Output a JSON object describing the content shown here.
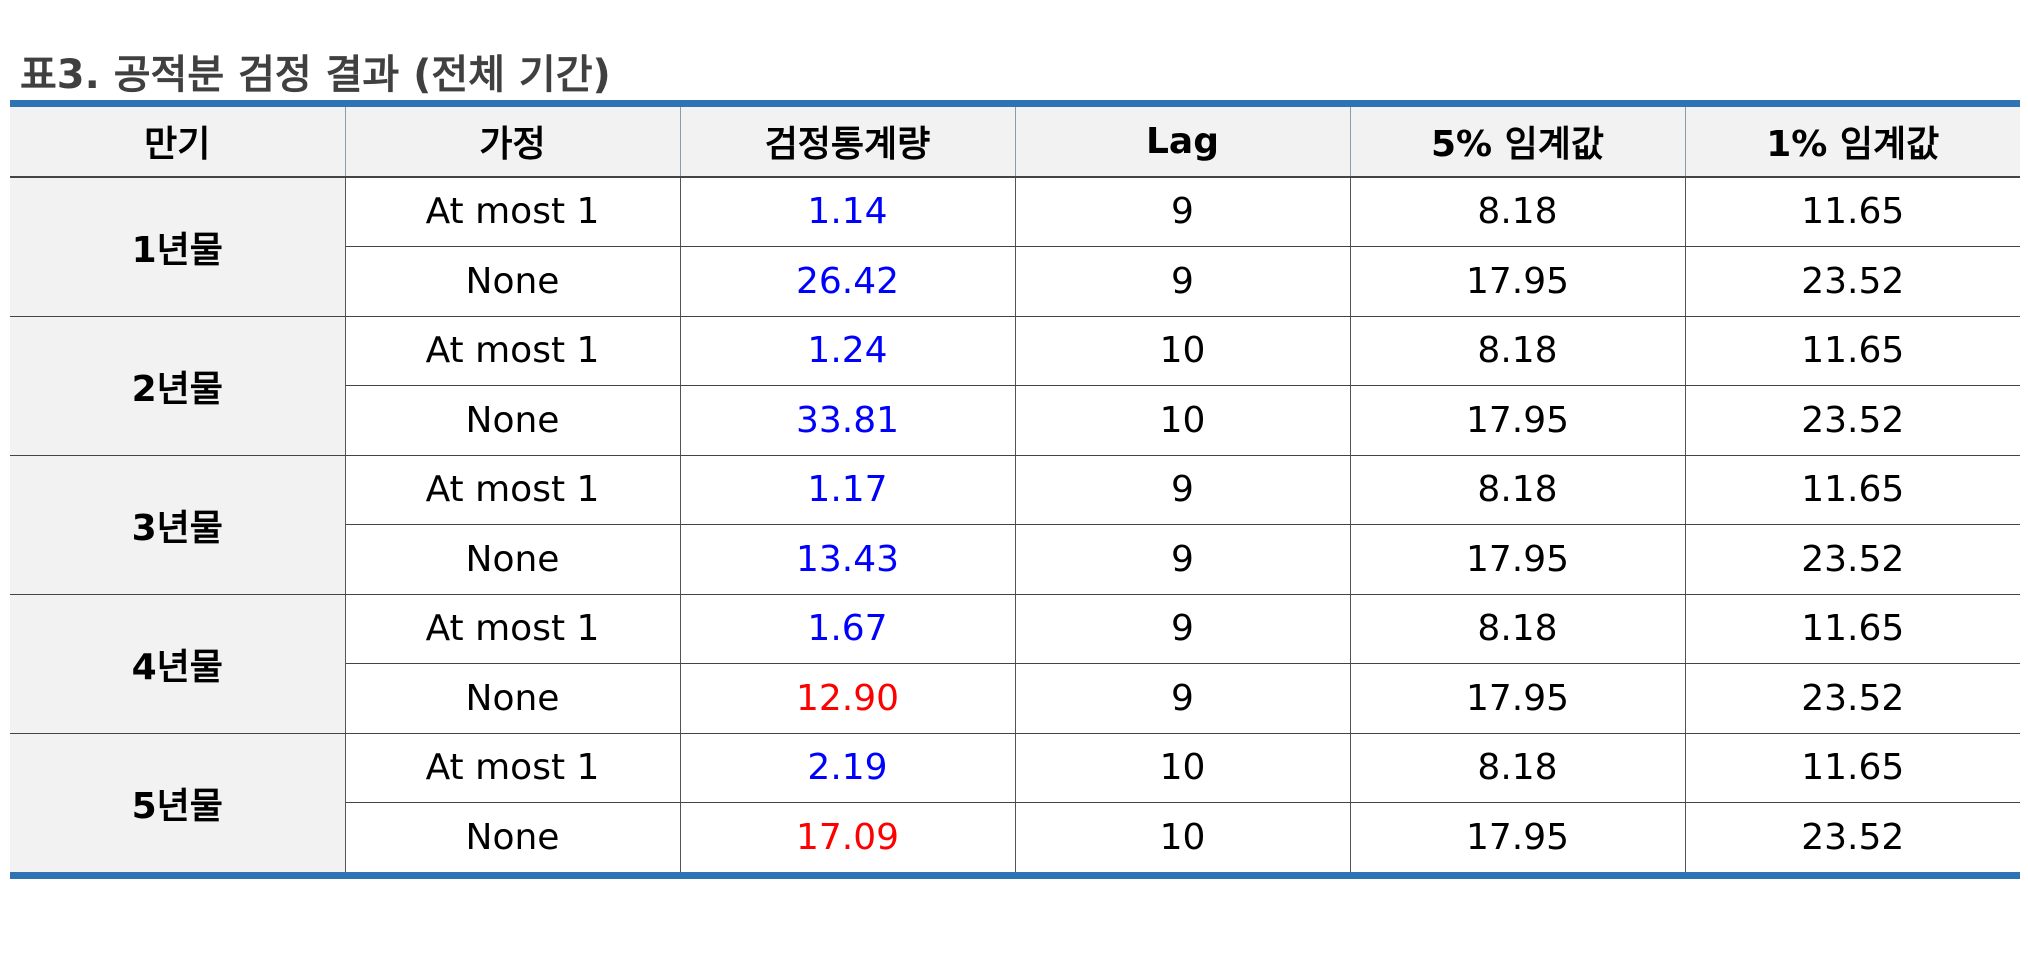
{
  "title": "표3. 공적분 검정 결과 (전체 기간)",
  "colors": {
    "accent": "#2e74b5",
    "header_bg": "#f2f2f2",
    "stat_blue": "#0000ff",
    "stat_red": "#ff0000"
  },
  "headers": [
    "만기",
    "가정",
    "검정통계량",
    "Lag",
    "5% 임계값",
    "1% 임계값"
  ],
  "groups": [
    {
      "maturity": "1년물",
      "rows": [
        {
          "hypothesis": "At most 1",
          "stat": "1.14",
          "lag": "9",
          "cv5": "8.18",
          "cv1": "11.65",
          "color": "blue"
        },
        {
          "hypothesis": "None",
          "stat": "26.42",
          "lag": "9",
          "cv5": "17.95",
          "cv1": "23.52",
          "color": "blue"
        }
      ]
    },
    {
      "maturity": "2년물",
      "rows": [
        {
          "hypothesis": "At most 1",
          "stat": "1.24",
          "lag": "10",
          "cv5": "8.18",
          "cv1": "11.65",
          "color": "blue"
        },
        {
          "hypothesis": "None",
          "stat": "33.81",
          "lag": "10",
          "cv5": "17.95",
          "cv1": "23.52",
          "color": "blue"
        }
      ]
    },
    {
      "maturity": "3년물",
      "rows": [
        {
          "hypothesis": "At most 1",
          "stat": "1.17",
          "lag": "9",
          "cv5": "8.18",
          "cv1": "11.65",
          "color": "blue"
        },
        {
          "hypothesis": "None",
          "stat": "13.43",
          "lag": "9",
          "cv5": "17.95",
          "cv1": "23.52",
          "color": "blue"
        }
      ]
    },
    {
      "maturity": "4년물",
      "rows": [
        {
          "hypothesis": "At most 1",
          "stat": "1.67",
          "lag": "9",
          "cv5": "8.18",
          "cv1": "11.65",
          "color": "blue"
        },
        {
          "hypothesis": "None",
          "stat": "12.90",
          "lag": "9",
          "cv5": "17.95",
          "cv1": "23.52",
          "color": "red"
        }
      ]
    },
    {
      "maturity": "5년물",
      "rows": [
        {
          "hypothesis": "At most 1",
          "stat": "2.19",
          "lag": "10",
          "cv5": "8.18",
          "cv1": "11.65",
          "color": "blue"
        },
        {
          "hypothesis": "None",
          "stat": "17.09",
          "lag": "10",
          "cv5": "17.95",
          "cv1": "23.52",
          "color": "red"
        }
      ]
    }
  ]
}
